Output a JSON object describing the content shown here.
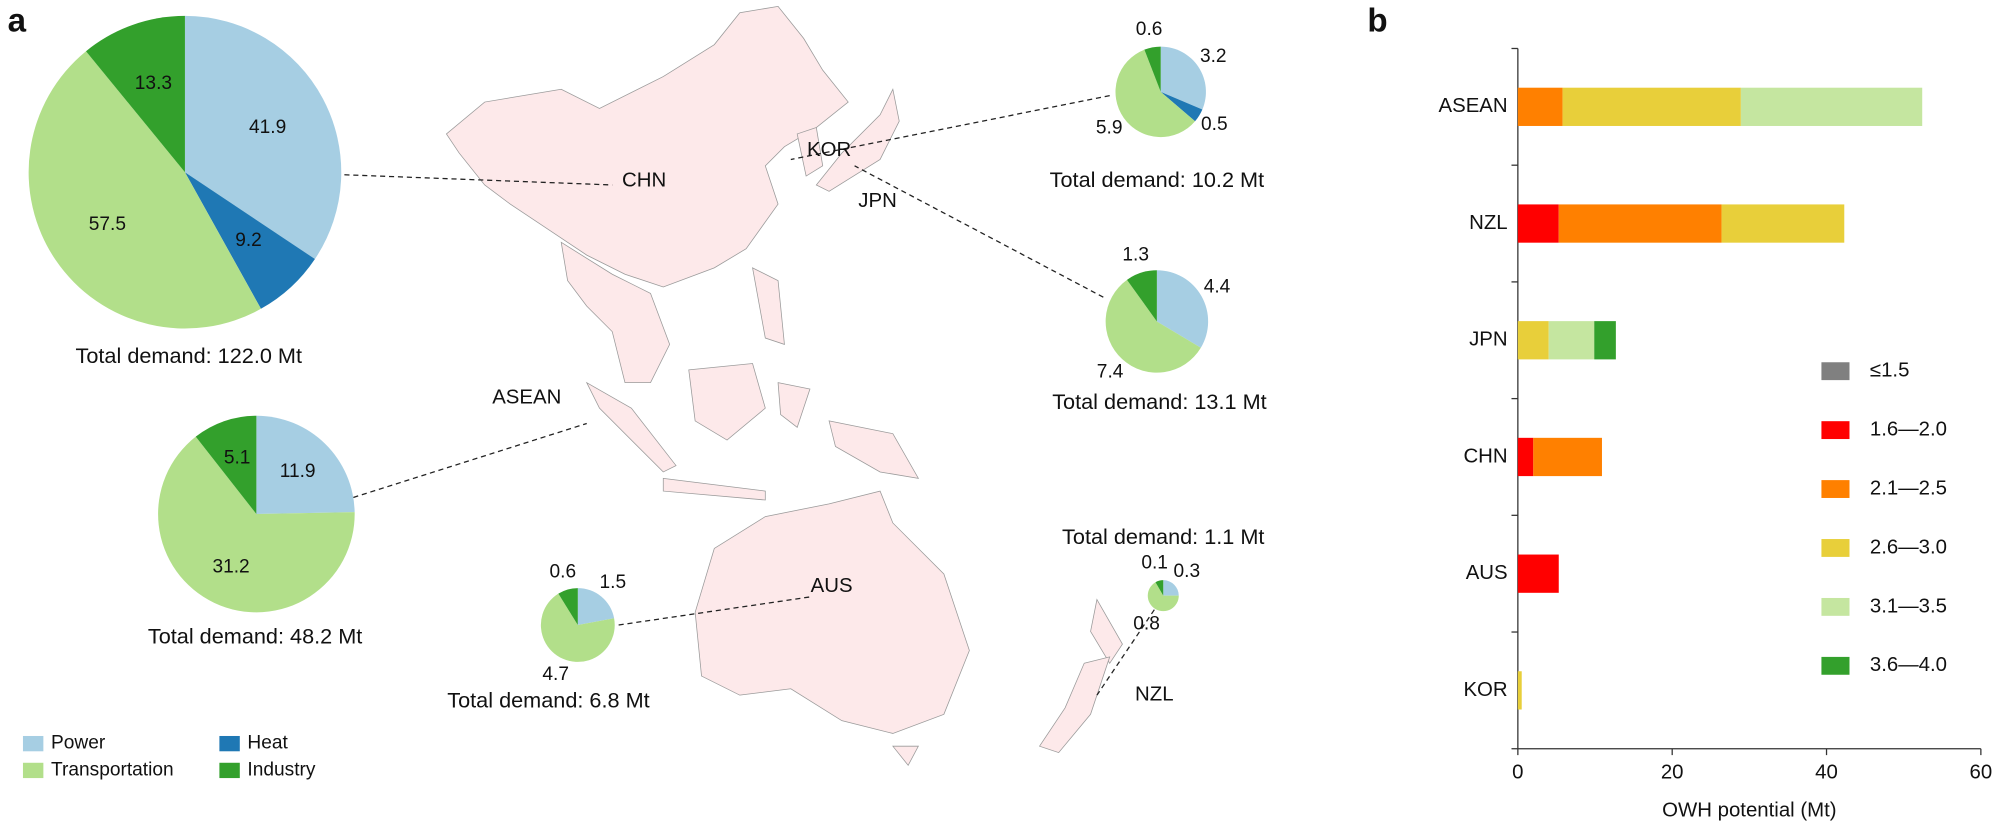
{
  "panel_labels": [
    "a",
    "b"
  ],
  "map_labels": [
    "CHN",
    "KOR",
    "JPN",
    "ASEAN",
    "AUS",
    "NZL"
  ],
  "pie_legend": [
    {
      "name": "Power",
      "color": "#a6cee3"
    },
    {
      "name": "Heat",
      "color": "#1f78b4"
    },
    {
      "name": "Transportation",
      "color": "#b2df8a"
    },
    {
      "name": "Industry",
      "color": "#33a02c"
    }
  ],
  "chart_data": [
    {
      "type": "pie",
      "values": [
        41.9,
        9.2,
        57.5,
        13.3
      ],
      "caption": "Total demand: 122.0 Mt"
    },
    {
      "type": "pie",
      "values": [
        3.2,
        0.5,
        5.9,
        0.6
      ],
      "caption": "Total demand: 10.2 Mt"
    },
    {
      "type": "pie",
      "values": [
        4.4,
        null,
        7.4,
        1.3
      ],
      "caption": "Total demand: 13.1 Mt"
    },
    {
      "type": "pie",
      "values": [
        11.9,
        null,
        31.2,
        5.1
      ],
      "caption": "Total demand: 48.2 Mt"
    },
    {
      "type": "pie",
      "values": [
        1.5,
        null,
        4.7,
        0.6
      ],
      "caption": "Total demand: 6.8 Mt"
    },
    {
      "type": "pie",
      "values": [
        0.3,
        null,
        0.8,
        0.1
      ],
      "caption": "Total demand: 1.1 Mt"
    },
    {
      "type": "bar",
      "orientation": "horizontal",
      "stacked": true,
      "categories": [
        "ASEAN",
        "NZL",
        "JPN",
        "CHN",
        "AUS",
        "KOR"
      ],
      "series": [
        {
          "name": "≤1.5",
          "color": "#808080",
          "values": [
            null,
            null,
            null,
            null,
            null,
            null
          ]
        },
        {
          "name": "1.6—2.0",
          "color": "#ff0000",
          "values": [
            null,
            5.3,
            null,
            2.0,
            5.3,
            null
          ]
        },
        {
          "name": "2.1—2.5",
          "color": "#ff8000",
          "values": [
            5.8,
            21.1,
            null,
            8.9,
            null,
            null
          ]
        },
        {
          "name": "2.6—3.0",
          "color": "#e8cf3a",
          "values": [
            23.1,
            15.9,
            4.0,
            null,
            null,
            0.5
          ]
        },
        {
          "name": "3.1—3.5",
          "color": "#c5e6a0",
          "values": [
            23.5,
            null,
            5.9,
            null,
            null,
            null
          ]
        },
        {
          "name": "3.6—4.0",
          "color": "#33a02c",
          "values": [
            null,
            null,
            2.8,
            null,
            null,
            null
          ]
        }
      ],
      "xlim": [
        0,
        60
      ],
      "xticks": [
        0,
        20,
        40,
        60
      ],
      "xlabel": "OWH potential (Mt)"
    }
  ]
}
